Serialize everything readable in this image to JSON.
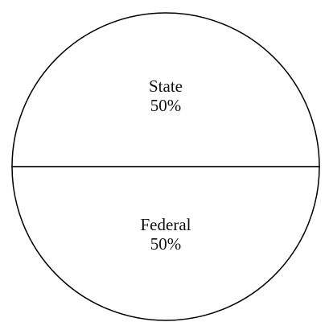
{
  "chart_data": {
    "type": "pie",
    "categories": [
      "State",
      "Federal"
    ],
    "values": [
      50,
      50
    ],
    "value_labels": [
      "50%",
      "50%"
    ],
    "colors": [
      "#ffffff",
      "#ffffff"
    ]
  }
}
